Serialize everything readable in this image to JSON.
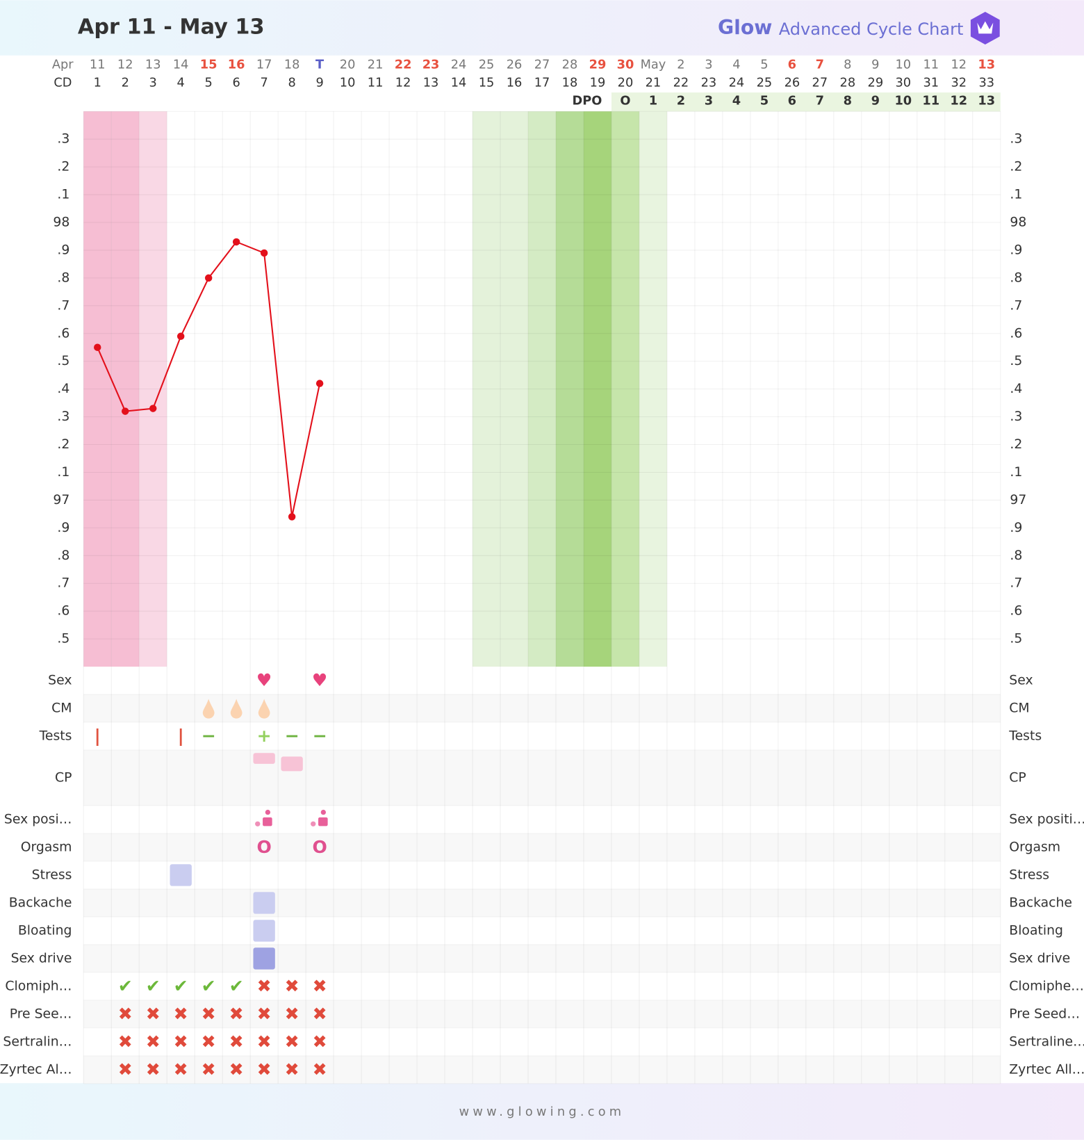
{
  "header": {
    "title": "Apr 11 - May 13",
    "brand": "Glow",
    "brand_text": "Advanced Cycle Chart"
  },
  "footer": "www.glowing.com",
  "chart_data": {
    "type": "line",
    "month_label": "Apr",
    "dates": [
      "11",
      "12",
      "13",
      "14",
      "15",
      "16",
      "17",
      "18",
      "T",
      "20",
      "21",
      "22",
      "23",
      "24",
      "25",
      "26",
      "27",
      "28",
      "29",
      "30",
      "May",
      "2",
      "3",
      "4",
      "5",
      "6",
      "7",
      "8",
      "9",
      "10",
      "11",
      "12",
      "13"
    ],
    "date_colors": [
      null,
      null,
      null,
      null,
      "#e8513f",
      "#e8513f",
      null,
      null,
      "#5b5fc7",
      null,
      null,
      "#e8513f",
      "#e8513f",
      null,
      null,
      null,
      null,
      null,
      "#e8513f",
      "#e8513f",
      null,
      null,
      null,
      null,
      null,
      "#e8513f",
      "#e8513f",
      null,
      null,
      null,
      null,
      null,
      "#e8513f"
    ],
    "cd_label": "CD",
    "categories": [
      1,
      2,
      3,
      4,
      5,
      6,
      7,
      8,
      9,
      10,
      11,
      12,
      13,
      14,
      15,
      16,
      17,
      18,
      19,
      20,
      21,
      22,
      23,
      24,
      25,
      26,
      27,
      28,
      29,
      30,
      31,
      32,
      33
    ],
    "dpo_label": "DPO",
    "dpo": [
      null,
      null,
      null,
      null,
      null,
      null,
      null,
      null,
      null,
      null,
      null,
      null,
      null,
      null,
      null,
      null,
      null,
      null,
      null,
      "O",
      1,
      2,
      3,
      4,
      5,
      6,
      7,
      8,
      9,
      10,
      11,
      12,
      13
    ],
    "dpo_color": "#eaf5e0",
    "shading": [
      "#f6bed3",
      "#f6bed3",
      "#f9d8e5",
      null,
      null,
      null,
      null,
      null,
      null,
      null,
      null,
      null,
      null,
      null,
      "#e4f2da",
      "#e4f2da",
      "#d4ebc4",
      "#b5dc97",
      "#a6d47b",
      "#c6e5aa",
      "#e8f4df",
      null,
      null,
      null,
      null,
      null,
      null,
      null,
      null,
      null,
      null,
      null,
      null
    ],
    "series": [
      {
        "name": "BBT",
        "color": "#e3101b",
        "values": [
          97.55,
          97.32,
          97.33,
          97.59,
          97.8,
          97.93,
          97.89,
          96.94,
          97.42,
          null,
          null,
          null,
          null,
          null,
          null,
          null,
          null,
          null,
          null,
          null,
          null,
          null,
          null,
          null,
          null,
          null,
          null,
          null,
          null,
          null,
          null,
          null,
          null
        ]
      }
    ],
    "ylim": [
      96.4,
      98.4
    ],
    "yticks": [
      {
        "value": 96.5,
        "label": ".5"
      },
      {
        "value": 96.6,
        "label": ".6"
      },
      {
        "value": 96.7,
        "label": ".7"
      },
      {
        "value": 96.8,
        "label": ".8"
      },
      {
        "value": 96.9,
        "label": ".9"
      },
      97,
      {
        "value": 97.1,
        "label": ".1"
      },
      {
        "value": 97.2,
        "label": ".2"
      },
      {
        "value": 97.3,
        "label": ".3"
      },
      {
        "value": 97.4,
        "label": ".4"
      },
      {
        "value": 97.5,
        "label": ".5"
      },
      {
        "value": 97.6,
        "label": ".6"
      },
      {
        "value": 97.7,
        "label": ".7"
      },
      {
        "value": 97.8,
        "label": ".8"
      },
      {
        "value": 97.9,
        "label": ".9"
      },
      98,
      {
        "value": 98.1,
        "label": ".1"
      },
      {
        "value": 98.2,
        "label": ".2"
      },
      {
        "value": 98.3,
        "label": ".3"
      }
    ],
    "grid": true
  },
  "glyph_colors": {
    "♥": "#e8427c",
    "O": "#e0508f",
    "|": "#e0523f",
    "−": "#6db33f",
    "+": "#93d05e",
    "✔": "#6cb83a",
    "✖": "#e04a3b"
  },
  "rows": [
    {
      "left": "Sex",
      "right": "Sex",
      "shape": "glyph",
      "marks": [
        {
          "day": 7,
          "glyph": "♥"
        },
        {
          "day": 9,
          "glyph": "♥"
        }
      ]
    },
    {
      "left": "CM",
      "right": "CM",
      "shape": "drop",
      "marks": [
        {
          "day": 5,
          "color": "#fbd3b0"
        },
        {
          "day": 6,
          "color": "#fbd3b0"
        },
        {
          "day": 7,
          "color": "#fbd3b0"
        }
      ]
    },
    {
      "left": "Tests",
      "right": "Tests",
      "shape": "glyph",
      "marks": [
        {
          "day": 1,
          "glyph": "|"
        },
        {
          "day": 4,
          "glyph": "|"
        },
        {
          "day": 5,
          "glyph": "−"
        },
        {
          "day": 7,
          "glyph": "+"
        },
        {
          "day": 8,
          "glyph": "−"
        },
        {
          "day": 9,
          "glyph": "−"
        }
      ]
    },
    {
      "left": "CP",
      "right": "CP",
      "shape": "rect",
      "marks": [
        {
          "day": 7,
          "color": "#f7c3d6"
        },
        {
          "day": 8,
          "color": "#f7c3d6"
        }
      ]
    },
    {
      "left": "Sex posi…",
      "right": "Sex positi…",
      "shape": "figure",
      "marks": [
        {
          "day": 7,
          "color": "#e8609a"
        },
        {
          "day": 9,
          "color": "#e8609a"
        }
      ]
    },
    {
      "left": "Orgasm",
      "right": "Orgasm",
      "shape": "glyph",
      "marks": [
        {
          "day": 7,
          "glyph": "O"
        },
        {
          "day": 9,
          "glyph": "O"
        }
      ]
    },
    {
      "left": "Stress",
      "right": "Stress",
      "shape": "square",
      "marks": [
        {
          "day": 4,
          "color": "#cacdf0"
        }
      ]
    },
    {
      "left": "Backache",
      "right": "Backache",
      "shape": "square",
      "marks": [
        {
          "day": 7,
          "color": "#cacdf0"
        }
      ]
    },
    {
      "left": "Bloating",
      "right": "Bloating",
      "shape": "square",
      "marks": [
        {
          "day": 7,
          "color": "#cacdf0"
        }
      ]
    },
    {
      "left": "Sex drive",
      "right": "Sex drive",
      "shape": "square",
      "marks": [
        {
          "day": 7,
          "color": "#9ea2e2"
        }
      ]
    },
    {
      "left": "Clomiph…",
      "right": "Clomiphe…",
      "shape": "glyph",
      "marks": [
        {
          "day": 2,
          "glyph": "✔"
        },
        {
          "day": 3,
          "glyph": "✔"
        },
        {
          "day": 4,
          "glyph": "✔"
        },
        {
          "day": 5,
          "glyph": "✔"
        },
        {
          "day": 6,
          "glyph": "✔"
        },
        {
          "day": 7,
          "glyph": "✖"
        },
        {
          "day": 8,
          "glyph": "✖"
        },
        {
          "day": 9,
          "glyph": "✖"
        }
      ]
    },
    {
      "left": "Pre See…",
      "right": "Pre Seed…",
      "shape": "glyph",
      "marks": [
        {
          "day": 2,
          "glyph": "✖"
        },
        {
          "day": 3,
          "glyph": "✖"
        },
        {
          "day": 4,
          "glyph": "✖"
        },
        {
          "day": 5,
          "glyph": "✖"
        },
        {
          "day": 6,
          "glyph": "✖"
        },
        {
          "day": 7,
          "glyph": "✖"
        },
        {
          "day": 8,
          "glyph": "✖"
        },
        {
          "day": 9,
          "glyph": "✖"
        }
      ]
    },
    {
      "left": "Sertralin…",
      "right": "Sertraline…",
      "shape": "glyph",
      "marks": [
        {
          "day": 2,
          "glyph": "✖"
        },
        {
          "day": 3,
          "glyph": "✖"
        },
        {
          "day": 4,
          "glyph": "✖"
        },
        {
          "day": 5,
          "glyph": "✖"
        },
        {
          "day": 6,
          "glyph": "✖"
        },
        {
          "day": 7,
          "glyph": "✖"
        },
        {
          "day": 8,
          "glyph": "✖"
        },
        {
          "day": 9,
          "glyph": "✖"
        }
      ]
    },
    {
      "left": "Zyrtec Al…",
      "right": "Zyrtec All…",
      "shape": "glyph",
      "marks": [
        {
          "day": 2,
          "glyph": "✖"
        },
        {
          "day": 3,
          "glyph": "✖"
        },
        {
          "day": 4,
          "glyph": "✖"
        },
        {
          "day": 5,
          "glyph": "✖"
        },
        {
          "day": 6,
          "glyph": "✖"
        },
        {
          "day": 7,
          "glyph": "✖"
        },
        {
          "day": 8,
          "glyph": "✖"
        },
        {
          "day": 9,
          "glyph": "✖"
        }
      ]
    }
  ]
}
